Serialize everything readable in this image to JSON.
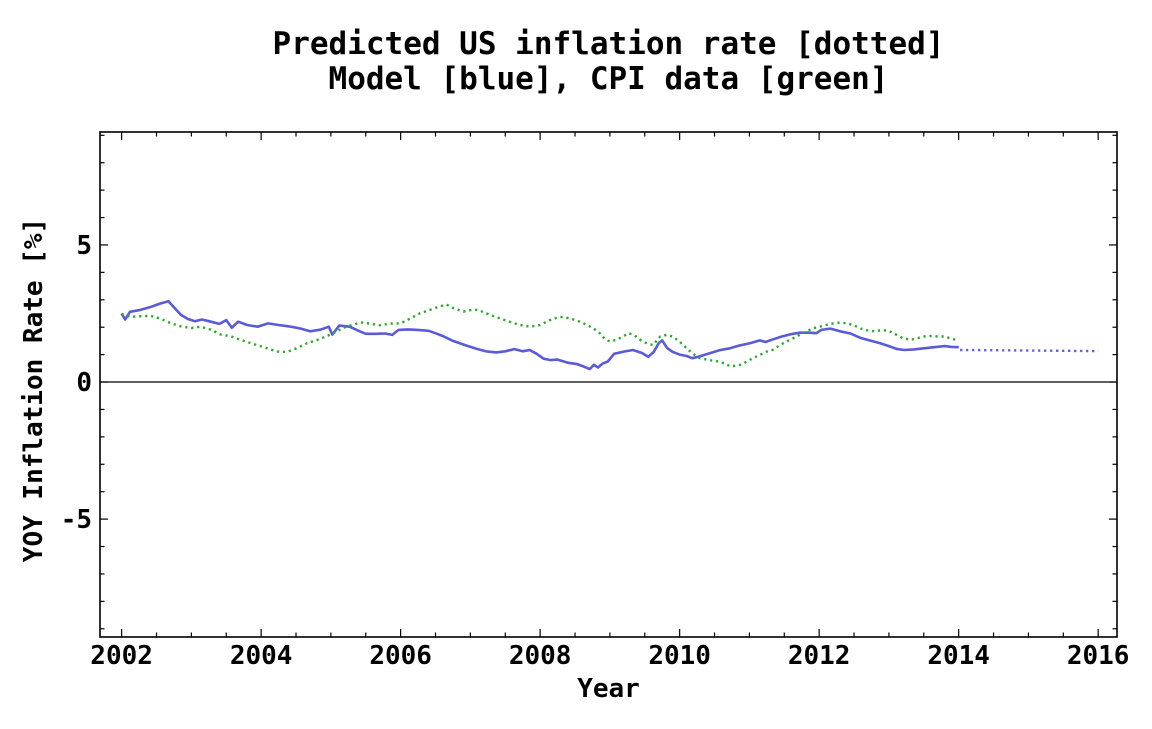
{
  "figure": {
    "background": "#ffffff"
  },
  "chart_data": {
    "type": "line",
    "title": "Predicted US inflation rate [dotted]",
    "subtitle": "Model [blue], CPI data [green]",
    "xlabel": "Year",
    "ylabel": "YOY Inflation Rate [%]",
    "xlim": [
      2001.69,
      2016.27
    ],
    "ylim": [
      -9.3,
      9.12
    ],
    "x_major_ticks": [
      2002,
      2004,
      2006,
      2008,
      2010,
      2012,
      2014,
      2016
    ],
    "x_tick_labels": [
      "2002",
      "2004",
      "2006",
      "2008",
      "2010",
      "2012",
      "2014",
      "2016"
    ],
    "x_minor_tick_step": 0.5,
    "y_major_ticks": [
      -5,
      0,
      5
    ],
    "y_tick_labels": [
      "-5",
      "0",
      "5"
    ],
    "y_minor_tick_step": 1,
    "grid": false,
    "frame": true,
    "ticks_inward_all_sides": true,
    "zero_line": true,
    "legend_position": "in-title",
    "axis_color": "#000000",
    "series": [
      {
        "name": "Model",
        "color": "#5b5bd9",
        "style": "solid",
        "width": 2.6,
        "points": [
          [
            2002.0,
            2.5
          ],
          [
            2002.05,
            2.28
          ],
          [
            2002.12,
            2.56
          ],
          [
            2002.25,
            2.62
          ],
          [
            2002.42,
            2.74
          ],
          [
            2002.55,
            2.86
          ],
          [
            2002.67,
            2.95
          ],
          [
            2002.76,
            2.7
          ],
          [
            2002.85,
            2.45
          ],
          [
            2002.95,
            2.3
          ],
          [
            2003.05,
            2.22
          ],
          [
            2003.15,
            2.28
          ],
          [
            2003.28,
            2.2
          ],
          [
            2003.4,
            2.12
          ],
          [
            2003.5,
            2.26
          ],
          [
            2003.58,
            1.98
          ],
          [
            2003.67,
            2.2
          ],
          [
            2003.8,
            2.08
          ],
          [
            2003.95,
            2.02
          ],
          [
            2004.1,
            2.14
          ],
          [
            2004.25,
            2.08
          ],
          [
            2004.4,
            2.03
          ],
          [
            2004.55,
            1.96
          ],
          [
            2004.7,
            1.85
          ],
          [
            2004.85,
            1.91
          ],
          [
            2004.97,
            2.02
          ],
          [
            2005.02,
            1.73
          ],
          [
            2005.12,
            2.06
          ],
          [
            2005.27,
            2.02
          ],
          [
            2005.42,
            1.84
          ],
          [
            2005.5,
            1.76
          ],
          [
            2005.65,
            1.76
          ],
          [
            2005.78,
            1.77
          ],
          [
            2005.88,
            1.72
          ],
          [
            2005.97,
            1.9
          ],
          [
            2006.1,
            1.92
          ],
          [
            2006.25,
            1.9
          ],
          [
            2006.4,
            1.87
          ],
          [
            2006.5,
            1.78
          ],
          [
            2006.62,
            1.66
          ],
          [
            2006.75,
            1.5
          ],
          [
            2006.92,
            1.35
          ],
          [
            2007.08,
            1.22
          ],
          [
            2007.22,
            1.12
          ],
          [
            2007.37,
            1.08
          ],
          [
            2007.5,
            1.12
          ],
          [
            2007.63,
            1.2
          ],
          [
            2007.75,
            1.12
          ],
          [
            2007.85,
            1.17
          ],
          [
            2007.95,
            1.03
          ],
          [
            2008.05,
            0.85
          ],
          [
            2008.15,
            0.8
          ],
          [
            2008.25,
            0.82
          ],
          [
            2008.4,
            0.7
          ],
          [
            2008.52,
            0.66
          ],
          [
            2008.62,
            0.57
          ],
          [
            2008.71,
            0.47
          ],
          [
            2008.77,
            0.63
          ],
          [
            2008.83,
            0.53
          ],
          [
            2008.9,
            0.68
          ],
          [
            2008.97,
            0.75
          ],
          [
            2009.06,
            1.03
          ],
          [
            2009.2,
            1.11
          ],
          [
            2009.33,
            1.17
          ],
          [
            2009.46,
            1.06
          ],
          [
            2009.55,
            0.92
          ],
          [
            2009.63,
            1.1
          ],
          [
            2009.7,
            1.42
          ],
          [
            2009.75,
            1.52
          ],
          [
            2009.82,
            1.24
          ],
          [
            2009.9,
            1.1
          ],
          [
            2010.0,
            1.0
          ],
          [
            2010.1,
            0.95
          ],
          [
            2010.18,
            0.87
          ],
          [
            2010.28,
            0.93
          ],
          [
            2010.42,
            1.04
          ],
          [
            2010.57,
            1.16
          ],
          [
            2010.72,
            1.23
          ],
          [
            2010.87,
            1.34
          ],
          [
            2011.0,
            1.41
          ],
          [
            2011.15,
            1.52
          ],
          [
            2011.23,
            1.46
          ],
          [
            2011.32,
            1.54
          ],
          [
            2011.45,
            1.65
          ],
          [
            2011.6,
            1.75
          ],
          [
            2011.72,
            1.8
          ],
          [
            2011.86,
            1.8
          ],
          [
            2011.96,
            1.78
          ],
          [
            2012.03,
            1.9
          ],
          [
            2012.16,
            1.95
          ],
          [
            2012.3,
            1.85
          ],
          [
            2012.45,
            1.77
          ],
          [
            2012.58,
            1.62
          ],
          [
            2012.72,
            1.52
          ],
          [
            2012.87,
            1.42
          ],
          [
            2013.01,
            1.3
          ],
          [
            2013.12,
            1.2
          ],
          [
            2013.22,
            1.17
          ],
          [
            2013.36,
            1.19
          ],
          [
            2013.5,
            1.23
          ],
          [
            2013.65,
            1.27
          ],
          [
            2013.8,
            1.31
          ],
          [
            2013.9,
            1.28
          ],
          [
            2014.0,
            1.27
          ]
        ]
      },
      {
        "name": "Model prediction",
        "color": "#5b5bd9",
        "style": "dotted",
        "width": 2.4,
        "points": [
          [
            2014.02,
            1.17
          ],
          [
            2014.5,
            1.16
          ],
          [
            2015.0,
            1.15
          ],
          [
            2015.5,
            1.14
          ],
          [
            2016.0,
            1.13
          ]
        ]
      },
      {
        "name": "CPI data",
        "color": "#2ca82c",
        "style": "dotted",
        "width": 2.4,
        "points": [
          [
            2002.0,
            2.48
          ],
          [
            2002.12,
            2.38
          ],
          [
            2002.27,
            2.4
          ],
          [
            2002.42,
            2.41
          ],
          [
            2002.55,
            2.32
          ],
          [
            2002.7,
            2.15
          ],
          [
            2002.85,
            2.03
          ],
          [
            2003.0,
            1.97
          ],
          [
            2003.13,
            2.02
          ],
          [
            2003.28,
            1.91
          ],
          [
            2003.42,
            1.73
          ],
          [
            2003.56,
            1.67
          ],
          [
            2003.7,
            1.54
          ],
          [
            2003.85,
            1.42
          ],
          [
            2004.0,
            1.3
          ],
          [
            2004.1,
            1.22
          ],
          [
            2004.23,
            1.11
          ],
          [
            2004.37,
            1.1
          ],
          [
            2004.51,
            1.23
          ],
          [
            2004.65,
            1.41
          ],
          [
            2004.8,
            1.53
          ],
          [
            2004.94,
            1.67
          ],
          [
            2005.04,
            1.79
          ],
          [
            2005.14,
            1.92
          ],
          [
            2005.23,
            2.03
          ],
          [
            2005.33,
            2.09
          ],
          [
            2005.42,
            2.18
          ],
          [
            2005.56,
            2.13
          ],
          [
            2005.7,
            2.07
          ],
          [
            2005.85,
            2.13
          ],
          [
            2006.0,
            2.14
          ],
          [
            2006.14,
            2.32
          ],
          [
            2006.28,
            2.51
          ],
          [
            2006.42,
            2.63
          ],
          [
            2006.56,
            2.76
          ],
          [
            2006.66,
            2.82
          ],
          [
            2006.76,
            2.69
          ],
          [
            2006.9,
            2.57
          ],
          [
            2007.05,
            2.65
          ],
          [
            2007.14,
            2.6
          ],
          [
            2007.28,
            2.45
          ],
          [
            2007.42,
            2.32
          ],
          [
            2007.56,
            2.2
          ],
          [
            2007.71,
            2.08
          ],
          [
            2007.85,
            2.02
          ],
          [
            2008.0,
            2.08
          ],
          [
            2008.14,
            2.26
          ],
          [
            2008.28,
            2.38
          ],
          [
            2008.43,
            2.32
          ],
          [
            2008.57,
            2.2
          ],
          [
            2008.71,
            2.03
          ],
          [
            2008.83,
            1.85
          ],
          [
            2008.93,
            1.56
          ],
          [
            2009.0,
            1.48
          ],
          [
            2009.09,
            1.54
          ],
          [
            2009.19,
            1.66
          ],
          [
            2009.27,
            1.78
          ],
          [
            2009.35,
            1.71
          ],
          [
            2009.44,
            1.53
          ],
          [
            2009.53,
            1.41
          ],
          [
            2009.62,
            1.35
          ],
          [
            2009.72,
            1.66
          ],
          [
            2009.81,
            1.72
          ],
          [
            2009.9,
            1.66
          ],
          [
            2010.0,
            1.47
          ],
          [
            2010.08,
            1.28
          ],
          [
            2010.15,
            1.12
          ],
          [
            2010.22,
            0.98
          ],
          [
            2010.29,
            0.87
          ],
          [
            2010.43,
            0.8
          ],
          [
            2010.58,
            0.74
          ],
          [
            2010.73,
            0.57
          ],
          [
            2010.87,
            0.63
          ],
          [
            2010.96,
            0.74
          ],
          [
            2011.05,
            0.87
          ],
          [
            2011.15,
            0.99
          ],
          [
            2011.25,
            1.11
          ],
          [
            2011.34,
            1.18
          ],
          [
            2011.44,
            1.35
          ],
          [
            2011.53,
            1.47
          ],
          [
            2011.63,
            1.6
          ],
          [
            2011.72,
            1.72
          ],
          [
            2011.82,
            1.85
          ],
          [
            2011.91,
            1.96
          ],
          [
            2012.01,
            2.02
          ],
          [
            2012.1,
            2.08
          ],
          [
            2012.2,
            2.14
          ],
          [
            2012.3,
            2.17
          ],
          [
            2012.4,
            2.14
          ],
          [
            2012.5,
            2.07
          ],
          [
            2012.6,
            1.95
          ],
          [
            2012.7,
            1.88
          ],
          [
            2012.8,
            1.85
          ],
          [
            2012.91,
            1.9
          ],
          [
            2013.01,
            1.85
          ],
          [
            2013.11,
            1.72
          ],
          [
            2013.2,
            1.6
          ],
          [
            2013.31,
            1.54
          ],
          [
            2013.41,
            1.6
          ],
          [
            2013.5,
            1.66
          ],
          [
            2013.6,
            1.68
          ],
          [
            2013.7,
            1.66
          ],
          [
            2013.8,
            1.66
          ],
          [
            2013.9,
            1.58
          ],
          [
            2014.0,
            1.51
          ]
        ]
      }
    ]
  }
}
